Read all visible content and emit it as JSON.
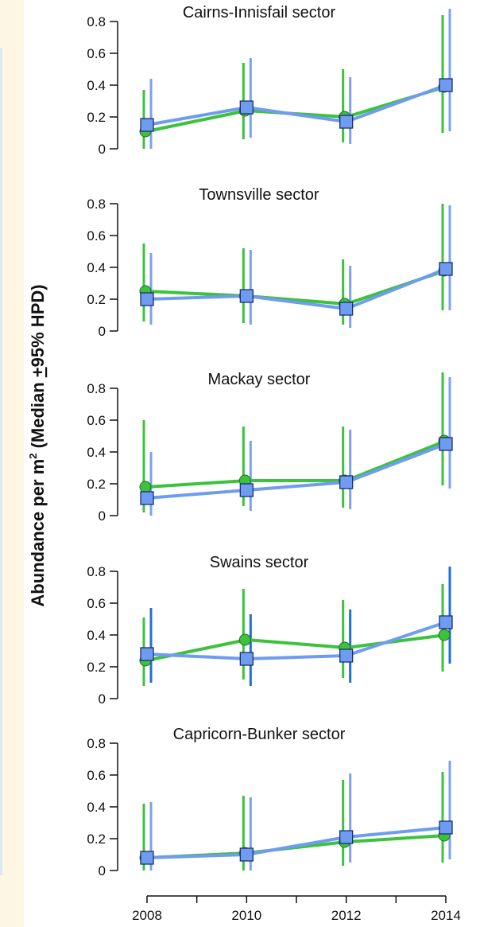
{
  "ylabel": {
    "prefix": "Abundance per m",
    "superscript": "2",
    "middle": " (Median ",
    "plusminus": "+",
    "suffix": "95% HPD)"
  },
  "colors": {
    "series_a": "#3cc23c",
    "series_a_bar": "#3cc23c",
    "series_b": "#6f9cf0",
    "series_b_bar": "#7aa2ee",
    "series_b_bar_dark": "#1f6fd8",
    "axis": "#111111",
    "left_strip": "#fdf6e3",
    "left_strip_edge": "#c9d8f0"
  },
  "x_ticks": [
    "2008",
    "2010",
    "2012",
    "2014"
  ],
  "y_ticks": [
    "0",
    "0.2",
    "0.4",
    "0.6",
    "0.8"
  ],
  "chart_data": [
    {
      "type": "line",
      "title": "Cairns-Innisfail sector",
      "x": [
        2008,
        2010,
        2012,
        2014
      ],
      "ylim": [
        0,
        0.8
      ],
      "series": [
        {
          "marker": "circle",
          "values": [
            0.11,
            0.24,
            0.2,
            0.39
          ],
          "lower": [
            0.0,
            0.06,
            0.04,
            0.1
          ],
          "upper": [
            0.37,
            0.54,
            0.5,
            0.84
          ]
        },
        {
          "marker": "square",
          "values": [
            0.15,
            0.26,
            0.17,
            0.4
          ],
          "lower": [
            0.0,
            0.07,
            0.03,
            0.11
          ],
          "upper": [
            0.44,
            0.57,
            0.45,
            0.88
          ]
        }
      ]
    },
    {
      "type": "line",
      "title": "Townsville sector",
      "x": [
        2008,
        2010,
        2012,
        2014
      ],
      "ylim": [
        0,
        0.8
      ],
      "series": [
        {
          "marker": "circle",
          "values": [
            0.25,
            0.22,
            0.17,
            0.38
          ],
          "lower": [
            0.06,
            0.05,
            0.04,
            0.13
          ],
          "upper": [
            0.55,
            0.52,
            0.45,
            0.8
          ]
        },
        {
          "marker": "square",
          "values": [
            0.2,
            0.22,
            0.14,
            0.39
          ],
          "lower": [
            0.04,
            0.04,
            0.02,
            0.13
          ],
          "upper": [
            0.49,
            0.51,
            0.41,
            0.79
          ]
        }
      ]
    },
    {
      "type": "line",
      "title": "Mackay sector",
      "x": [
        2008,
        2010,
        2012,
        2014
      ],
      "ylim": [
        0,
        0.8
      ],
      "series": [
        {
          "marker": "circle",
          "values": [
            0.18,
            0.22,
            0.22,
            0.47
          ],
          "lower": [
            0.02,
            0.06,
            0.05,
            0.19
          ],
          "upper": [
            0.6,
            0.56,
            0.56,
            0.9
          ]
        },
        {
          "marker": "square",
          "values": [
            0.11,
            0.16,
            0.21,
            0.45
          ],
          "lower": [
            0.0,
            0.03,
            0.04,
            0.17
          ],
          "upper": [
            0.4,
            0.47,
            0.54,
            0.87
          ]
        }
      ]
    },
    {
      "type": "line",
      "title": "Swains sector",
      "x": [
        2008,
        2010,
        2012,
        2014
      ],
      "ylim": [
        0,
        0.8
      ],
      "series": [
        {
          "marker": "circle",
          "values": [
            0.24,
            0.37,
            0.32,
            0.4
          ],
          "lower": [
            0.08,
            0.12,
            0.13,
            0.17
          ],
          "upper": [
            0.51,
            0.69,
            0.62,
            0.72
          ]
        },
        {
          "marker": "square",
          "values": [
            0.28,
            0.25,
            0.27,
            0.48
          ],
          "lower": [
            0.1,
            0.08,
            0.1,
            0.22
          ],
          "upper": [
            0.57,
            0.53,
            0.56,
            0.83
          ]
        }
      ]
    },
    {
      "type": "line",
      "title": "Capricorn-Bunker sector",
      "x": [
        2008,
        2010,
        2012,
        2014
      ],
      "ylim": [
        0,
        0.8
      ],
      "series": [
        {
          "marker": "circle",
          "values": [
            0.08,
            0.11,
            0.18,
            0.22
          ],
          "lower": [
            0.0,
            0.0,
            0.03,
            0.05
          ],
          "upper": [
            0.42,
            0.47,
            0.57,
            0.62
          ]
        },
        {
          "marker": "square",
          "values": [
            0.08,
            0.1,
            0.21,
            0.27
          ],
          "lower": [
            0.0,
            0.0,
            0.05,
            0.07
          ],
          "upper": [
            0.43,
            0.46,
            0.61,
            0.69
          ]
        }
      ]
    }
  ]
}
